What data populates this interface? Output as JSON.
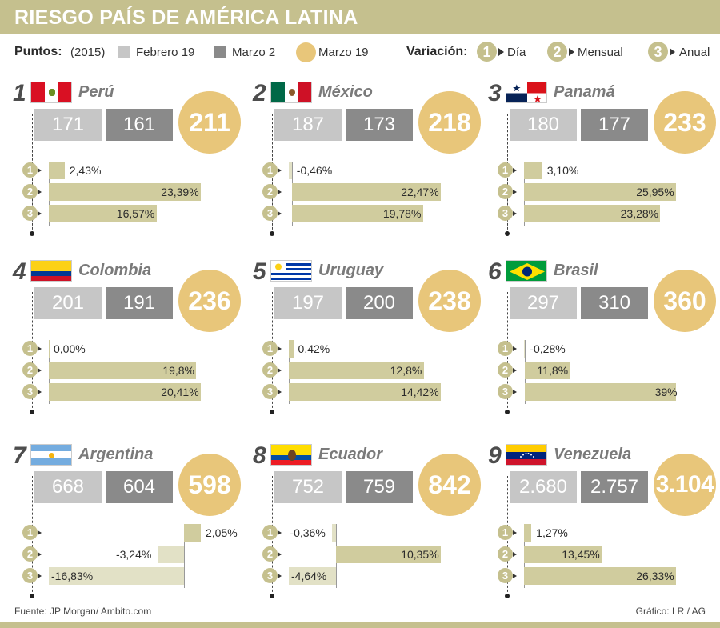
{
  "title": "RIESGO PAÍS DE AMÉRICA LATINA",
  "legend": {
    "puntos_label": "Puntos:",
    "year": "(2015)",
    "series": [
      {
        "name": "Febrero 19",
        "color": "#c6c6c6"
      },
      {
        "name": "Marzo 2",
        "color": "#8a8a8a"
      },
      {
        "name": "Marzo 19",
        "color": "#e8c67a"
      }
    ],
    "variacion_label": "Variación:",
    "variations": [
      {
        "num": "1",
        "name": "Día"
      },
      {
        "num": "2",
        "name": "Mensual"
      },
      {
        "num": "3",
        "name": "Anual"
      }
    ]
  },
  "chart_data": {
    "type": "bar",
    "units": "Puntos",
    "series_names": [
      "Febrero 19",
      "Marzo 2",
      "Marzo 19"
    ],
    "variation_names": [
      "Día",
      "Mensual",
      "Anual"
    ],
    "countries": [
      {
        "rank": "1",
        "name": "Perú",
        "flag": "peru",
        "feb19": "171",
        "mar2": "161",
        "mar19": "211",
        "variations": [
          {
            "num": "1",
            "value": 2.43,
            "label": "2,43%"
          },
          {
            "num": "2",
            "value": 23.39,
            "label": "23,39%"
          },
          {
            "num": "3",
            "value": 16.57,
            "label": "16,57%"
          }
        ]
      },
      {
        "rank": "2",
        "name": "México",
        "flag": "mexico",
        "feb19": "187",
        "mar2": "173",
        "mar19": "218",
        "variations": [
          {
            "num": "1",
            "value": -0.46,
            "label": "-0,46%"
          },
          {
            "num": "2",
            "value": 22.47,
            "label": "22,47%"
          },
          {
            "num": "3",
            "value": 19.78,
            "label": "19,78%"
          }
        ]
      },
      {
        "rank": "3",
        "name": "Panamá",
        "flag": "panama",
        "feb19": "180",
        "mar2": "177",
        "mar19": "233",
        "variations": [
          {
            "num": "1",
            "value": 3.1,
            "label": "3,10%"
          },
          {
            "num": "2",
            "value": 25.95,
            "label": "25,95%"
          },
          {
            "num": "3",
            "value": 23.28,
            "label": "23,28%"
          }
        ]
      },
      {
        "rank": "4",
        "name": "Colombia",
        "flag": "colombia",
        "feb19": "201",
        "mar2": "191",
        "mar19": "236",
        "variations": [
          {
            "num": "1",
            "value": 0.0,
            "label": "0,00%"
          },
          {
            "num": "2",
            "value": 19.8,
            "label": "19,8%"
          },
          {
            "num": "3",
            "value": 20.41,
            "label": "20,41%"
          }
        ]
      },
      {
        "rank": "5",
        "name": "Uruguay",
        "flag": "uruguay",
        "feb19": "197",
        "mar2": "200",
        "mar19": "238",
        "variations": [
          {
            "num": "1",
            "value": 0.42,
            "label": "0,42%"
          },
          {
            "num": "2",
            "value": 12.8,
            "label": "12,8%"
          },
          {
            "num": "3",
            "value": 14.42,
            "label": "14,42%"
          }
        ]
      },
      {
        "rank": "6",
        "name": "Brasil",
        "flag": "brasil",
        "feb19": "297",
        "mar2": "310",
        "mar19": "360",
        "variations": [
          {
            "num": "1",
            "value": -0.28,
            "label": "-0,28%"
          },
          {
            "num": "2",
            "value": 11.8,
            "label": "11,8%"
          },
          {
            "num": "3",
            "value": 39,
            "label": "39%"
          }
        ]
      },
      {
        "rank": "7",
        "name": "Argentina",
        "flag": "argentina",
        "feb19": "668",
        "mar2": "604",
        "mar19": "598",
        "variations": [
          {
            "num": "1",
            "value": 2.05,
            "label": "2,05%"
          },
          {
            "num": "2",
            "value": -3.24,
            "label": "-3,24%"
          },
          {
            "num": "3",
            "value": -16.83,
            "label": "-16,83%"
          }
        ]
      },
      {
        "rank": "8",
        "name": "Ecuador",
        "flag": "ecuador",
        "feb19": "752",
        "mar2": "759",
        "mar19": "842",
        "variations": [
          {
            "num": "1",
            "value": -0.36,
            "label": "-0,36%"
          },
          {
            "num": "2",
            "value": 10.35,
            "label": "10,35%"
          },
          {
            "num": "3",
            "value": -4.64,
            "label": "-4,64%"
          }
        ]
      },
      {
        "rank": "9",
        "name": "Venezuela",
        "flag": "venezuela",
        "feb19": "2.680",
        "mar2": "2.757",
        "mar19": "3.104",
        "variations": [
          {
            "num": "1",
            "value": 1.27,
            "label": "1,27%"
          },
          {
            "num": "2",
            "value": 13.45,
            "label": "13,45%"
          },
          {
            "num": "3",
            "value": 26.33,
            "label": "26,33%"
          }
        ]
      }
    ]
  },
  "footer": {
    "source": "Fuente: JP Morgan/ Ambito.com",
    "credit": "Gráfico: LR / AG"
  }
}
